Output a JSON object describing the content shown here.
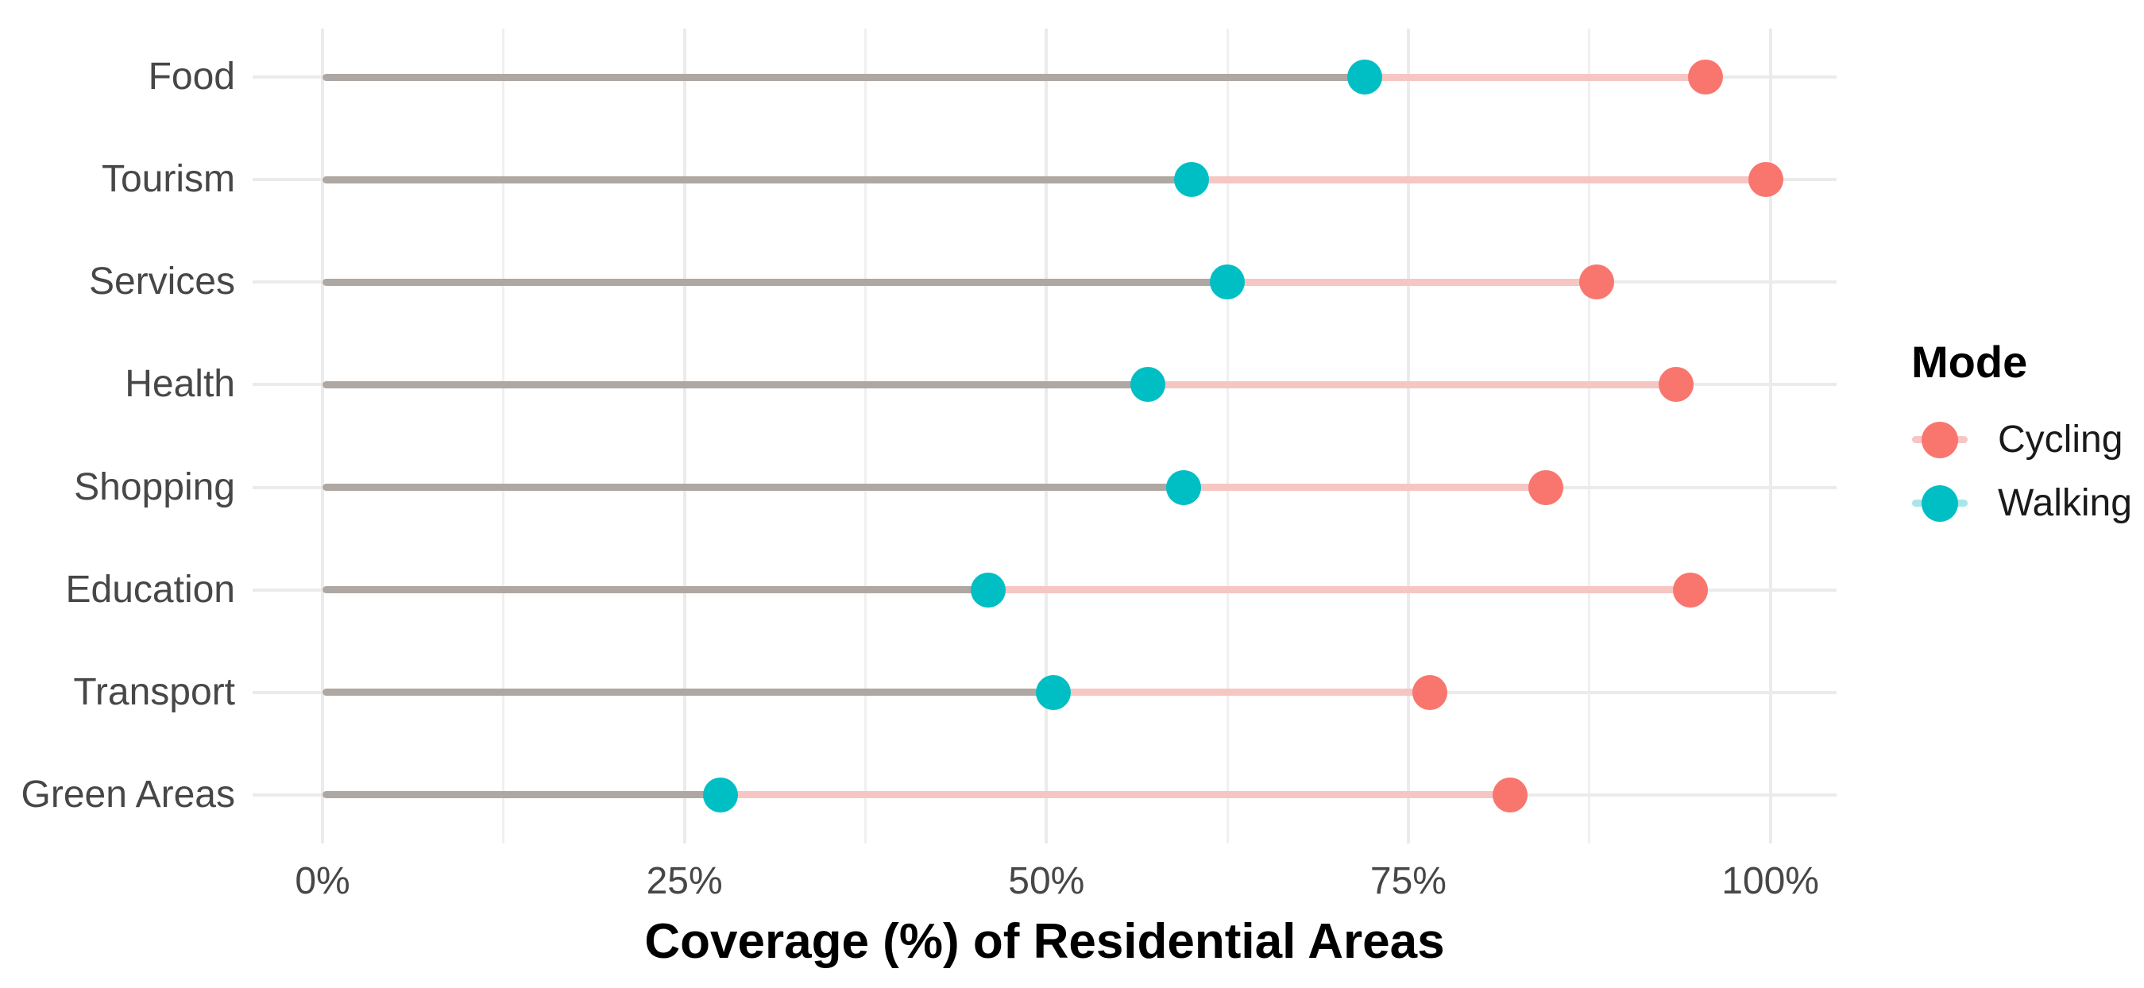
{
  "chart_data": {
    "type": "scatter",
    "variant": "dumbbell-lollipop",
    "title": "",
    "xlabel": "Coverage (%) of Residential Areas",
    "ylabel": "",
    "categories": [
      "Food",
      "Tourism",
      "Services",
      "Health",
      "Shopping",
      "Education",
      "Transport",
      "Green Areas"
    ],
    "series": [
      {
        "name": "Cycling",
        "color": "#F8766D",
        "values": [
          95.5,
          99.7,
          88,
          93.5,
          84.5,
          94.5,
          76.5,
          82
        ]
      },
      {
        "name": "Walking",
        "color": "#00BFC4",
        "values": [
          72,
          60,
          62.5,
          57,
          59.5,
          46,
          50.5,
          27.5
        ]
      }
    ],
    "connector": {
      "base_from_pct": 0,
      "base_color": "#AEA7A2",
      "between_color": "#F6C6C3"
    },
    "x_axis": {
      "range": [
        -5,
        105
      ],
      "ticks": [
        0,
        25,
        50,
        75,
        100
      ],
      "tick_labels": [
        "0%",
        "25%",
        "50%",
        "75%",
        "100%"
      ],
      "minor_ticks": [
        12.5,
        37.5,
        62.5,
        87.5
      ]
    },
    "grid": {
      "show": true,
      "color": "#EBEBEB",
      "minor_color": "#F0F0F0",
      "background": "#FFFFFF"
    },
    "legend": {
      "title": "Mode",
      "position": "right",
      "entries": [
        {
          "label": "Cycling",
          "dot_color": "#F8766D",
          "line_color": "#F6C6C3"
        },
        {
          "label": "Walking",
          "dot_color": "#00BFC4",
          "line_color": "#A9E6E8"
        }
      ]
    }
  }
}
